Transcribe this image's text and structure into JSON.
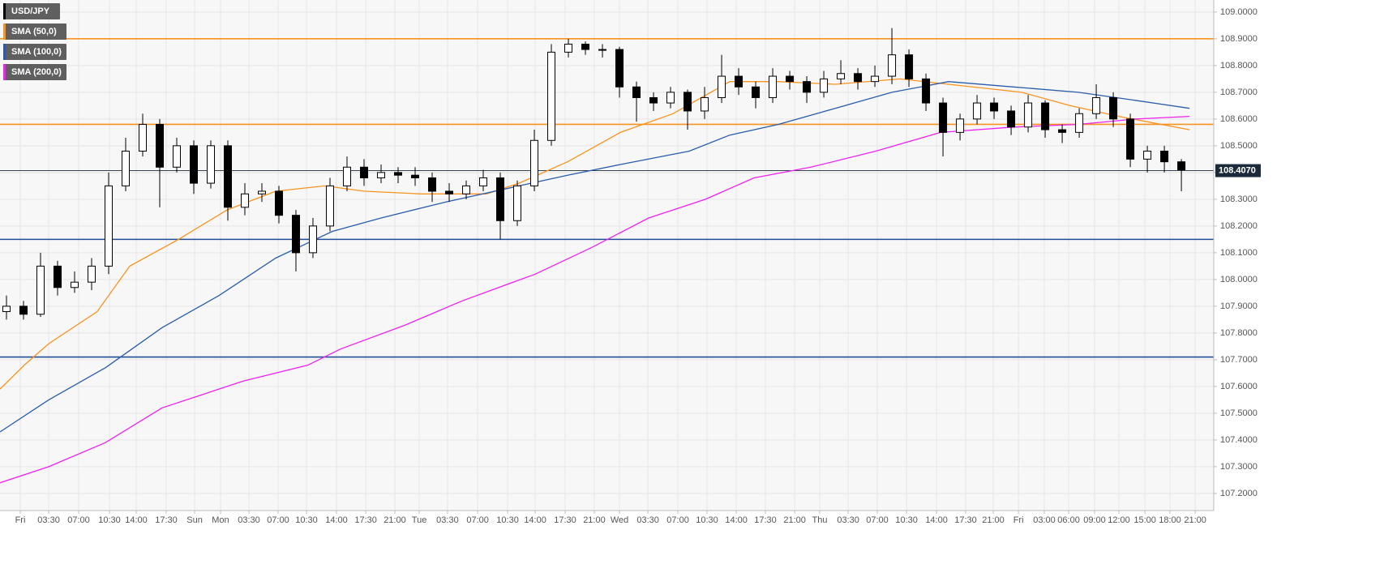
{
  "chart_data": {
    "type": "candlestick",
    "xlim": [
      -0.38,
      70.9
    ],
    "ylim": [
      107.136,
      109.045
    ],
    "grid": true,
    "legend": "top-left",
    "x": [
      0,
      1,
      2,
      3,
      4,
      5,
      6,
      7,
      8,
      9,
      10,
      11,
      12,
      13,
      14,
      15,
      16,
      17,
      18,
      19,
      20,
      21,
      22,
      23,
      24,
      25,
      26,
      27,
      28,
      29,
      30,
      31,
      32,
      33,
      34,
      35,
      36,
      37,
      38,
      39,
      40,
      41,
      42,
      43,
      44,
      45,
      46,
      47,
      48,
      49,
      50,
      51,
      52,
      53,
      54,
      55,
      56,
      57,
      58,
      59,
      60,
      61,
      62,
      63,
      64,
      65,
      66,
      67,
      68,
      69
    ],
    "candles": {
      "name": "USD/JPY",
      "color": "#000000",
      "up_color": "#ffffff",
      "open": [
        107.88,
        107.9,
        107.87,
        108.05,
        107.97,
        107.99,
        108.05,
        108.35,
        108.48,
        108.58,
        108.42,
        108.5,
        108.36,
        108.5,
        108.27,
        108.32,
        108.33,
        108.24,
        108.1,
        108.2,
        108.35,
        108.42,
        108.38,
        108.4,
        108.39,
        108.38,
        108.33,
        108.32,
        108.35,
        108.38,
        108.22,
        108.35,
        108.52,
        108.85,
        108.88,
        108.86,
        108.86,
        108.72,
        108.68,
        108.66,
        108.7,
        108.63,
        108.68,
        108.76,
        108.72,
        108.68,
        108.76,
        108.74,
        108.7,
        108.75,
        108.77,
        108.74,
        108.76,
        108.84,
        108.75,
        108.66,
        108.55,
        108.6,
        108.66,
        108.63,
        108.57,
        108.66,
        108.56,
        108.55,
        108.62,
        108.68,
        108.6,
        108.45,
        108.48,
        108.44
      ],
      "high": [
        107.94,
        107.92,
        108.1,
        108.07,
        108.03,
        108.08,
        108.4,
        108.53,
        108.62,
        108.6,
        108.53,
        108.52,
        108.52,
        108.52,
        108.36,
        108.36,
        108.35,
        108.26,
        108.23,
        108.38,
        108.46,
        108.45,
        108.43,
        108.42,
        108.42,
        108.4,
        108.36,
        108.37,
        108.41,
        108.4,
        108.37,
        108.56,
        108.88,
        108.9,
        108.89,
        108.88,
        108.87,
        108.74,
        108.7,
        108.72,
        108.71,
        108.72,
        108.84,
        108.79,
        108.74,
        108.79,
        108.78,
        108.76,
        108.78,
        108.82,
        108.79,
        108.8,
        108.94,
        108.86,
        108.77,
        108.68,
        108.62,
        108.69,
        108.68,
        108.65,
        108.69,
        108.67,
        108.58,
        108.64,
        108.73,
        108.7,
        108.62,
        108.5,
        108.5,
        108.45
      ],
      "low": [
        107.85,
        107.85,
        107.86,
        107.94,
        107.95,
        107.96,
        108.02,
        108.33,
        108.46,
        108.27,
        108.4,
        108.32,
        108.34,
        108.22,
        108.24,
        108.29,
        108.21,
        108.03,
        108.08,
        108.18,
        108.33,
        108.35,
        108.36,
        108.36,
        108.35,
        108.29,
        108.29,
        108.3,
        108.33,
        108.15,
        108.2,
        108.33,
        108.5,
        108.83,
        108.84,
        108.83,
        108.68,
        108.59,
        108.63,
        108.64,
        108.56,
        108.6,
        108.66,
        108.69,
        108.64,
        108.66,
        108.71,
        108.66,
        108.68,
        108.73,
        108.71,
        108.72,
        108.73,
        108.72,
        108.63,
        108.46,
        108.52,
        108.58,
        108.6,
        108.54,
        108.55,
        108.53,
        108.51,
        108.53,
        108.6,
        108.57,
        108.42,
        108.4,
        108.4,
        108.33
      ],
      "close": [
        107.9,
        107.87,
        108.05,
        107.97,
        107.99,
        108.05,
        108.35,
        108.48,
        108.58,
        108.42,
        108.5,
        108.36,
        108.5,
        108.27,
        108.32,
        108.33,
        108.24,
        108.1,
        108.2,
        108.35,
        108.42,
        108.38,
        108.4,
        108.39,
        108.38,
        108.33,
        108.32,
        108.35,
        108.38,
        108.22,
        108.35,
        108.52,
        108.85,
        108.88,
        108.86,
        108.86,
        108.72,
        108.68,
        108.66,
        108.7,
        108.63,
        108.68,
        108.76,
        108.72,
        108.68,
        108.76,
        108.74,
        108.7,
        108.75,
        108.77,
        108.74,
        108.76,
        108.84,
        108.75,
        108.66,
        108.55,
        108.6,
        108.66,
        108.63,
        108.57,
        108.66,
        108.56,
        108.55,
        108.62,
        108.68,
        108.6,
        108.45,
        108.48,
        108.44,
        108.41
      ]
    },
    "series": [
      {
        "name": "SMA (50,0)",
        "color": "#f7931e",
        "x": [
          -0.38,
          1.05,
          2.48,
          5.33,
          7.24,
          10.1,
          12.95,
          15.81,
          18.67,
          21.05,
          24.38,
          28.19,
          30.1,
          32.95,
          36.05,
          39.14,
          42.48,
          45.33,
          48.67,
          52.48,
          55.33,
          59.62,
          62.48,
          65.33,
          69.48
        ],
        "values": [
          107.59,
          107.68,
          107.76,
          107.88,
          108.05,
          108.15,
          108.26,
          108.33,
          108.35,
          108.33,
          108.32,
          108.32,
          108.36,
          108.44,
          108.55,
          108.62,
          108.74,
          108.74,
          108.73,
          108.75,
          108.73,
          108.7,
          108.65,
          108.61,
          108.56
        ]
      },
      {
        "name": "SMA (100,0)",
        "color": "#2a5caa",
        "x": [
          -0.38,
          2.48,
          5.81,
          9.14,
          12.48,
          15.81,
          19.14,
          22,
          25.81,
          30.1,
          32.95,
          36.05,
          40.1,
          42.48,
          45.33,
          48.67,
          52,
          55.33,
          59.14,
          62.95,
          66.29,
          69.48
        ],
        "values": [
          107.43,
          107.55,
          107.67,
          107.82,
          107.94,
          108.08,
          108.18,
          108.23,
          108.29,
          108.35,
          108.39,
          108.43,
          108.48,
          108.54,
          108.58,
          108.64,
          108.7,
          108.74,
          108.72,
          108.7,
          108.67,
          108.64
        ]
      },
      {
        "name": "SMA (200,0)",
        "color": "#ee22ee",
        "x": [
          -0.38,
          2.48,
          5.81,
          9.14,
          11.05,
          13.9,
          17.71,
          19.62,
          23.43,
          26.76,
          31.05,
          34.38,
          37.71,
          41.05,
          43.9,
          47.24,
          51.05,
          54.86,
          59.14,
          62.95,
          66.29,
          69.48
        ],
        "values": [
          107.24,
          107.3,
          107.39,
          107.52,
          107.56,
          107.62,
          107.68,
          107.74,
          107.83,
          107.92,
          108.02,
          108.12,
          108.23,
          108.3,
          108.38,
          108.42,
          108.48,
          108.55,
          108.57,
          108.58,
          108.6,
          108.61
        ]
      }
    ],
    "hlines": [
      {
        "value": 108.9,
        "color": "#f7931e"
      },
      {
        "value": 108.58,
        "color": "#f7931e"
      },
      {
        "value": 108.15,
        "color": "#1f4e96"
      },
      {
        "value": 107.71,
        "color": "#1f4e96"
      }
    ],
    "last_price": {
      "value": 108.407,
      "label": "108.4070"
    },
    "yticks": [
      {
        "value": 107.2,
        "label": "107.2000"
      },
      {
        "value": 107.3,
        "label": "107.3000"
      },
      {
        "value": 107.4,
        "label": "107.4000"
      },
      {
        "value": 107.5,
        "label": "107.5000"
      },
      {
        "value": 107.6,
        "label": "107.6000"
      },
      {
        "value": 107.7,
        "label": "107.7000"
      },
      {
        "value": 107.8,
        "label": "107.8000"
      },
      {
        "value": 107.9,
        "label": "107.9000"
      },
      {
        "value": 108.0,
        "label": "108.0000"
      },
      {
        "value": 108.1,
        "label": "108.1000"
      },
      {
        "value": 108.2,
        "label": "108.2000"
      },
      {
        "value": 108.3,
        "label": "108.3000"
      },
      {
        "value": 108.4,
        "label": "108.4000"
      },
      {
        "value": 108.5,
        "label": "108.5000"
      },
      {
        "value": 108.6,
        "label": "108.6000"
      },
      {
        "value": 108.7,
        "label": "108.7000"
      },
      {
        "value": 108.8,
        "label": "108.8000"
      },
      {
        "value": 108.9,
        "label": "108.9000"
      },
      {
        "value": 109.0,
        "label": "109.0000"
      }
    ],
    "xticks": [
      {
        "value": 0.81,
        "label": "Fri"
      },
      {
        "value": 2.48,
        "label": "03:30"
      },
      {
        "value": 4.24,
        "label": "07:00"
      },
      {
        "value": 6.05,
        "label": "10:30"
      },
      {
        "value": 7.62,
        "label": "14:00"
      },
      {
        "value": 9.38,
        "label": "17:30"
      },
      {
        "value": 11.05,
        "label": "Sun"
      },
      {
        "value": 12.57,
        "label": "Mon"
      },
      {
        "value": 14.24,
        "label": "03:30"
      },
      {
        "value": 15.95,
        "label": "07:00"
      },
      {
        "value": 17.62,
        "label": "10:30"
      },
      {
        "value": 19.38,
        "label": "14:00"
      },
      {
        "value": 21.1,
        "label": "17:30"
      },
      {
        "value": 22.81,
        "label": "21:00"
      },
      {
        "value": 24.24,
        "label": "Tue"
      },
      {
        "value": 25.9,
        "label": "03:30"
      },
      {
        "value": 27.67,
        "label": "07:00"
      },
      {
        "value": 29.43,
        "label": "10:30"
      },
      {
        "value": 31.05,
        "label": "14:00"
      },
      {
        "value": 32.81,
        "label": "17:30"
      },
      {
        "value": 34.52,
        "label": "21:00"
      },
      {
        "value": 36,
        "label": "Wed"
      },
      {
        "value": 37.67,
        "label": "03:30"
      },
      {
        "value": 39.43,
        "label": "07:00"
      },
      {
        "value": 41.14,
        "label": "10:30"
      },
      {
        "value": 42.86,
        "label": "14:00"
      },
      {
        "value": 44.57,
        "label": "17:30"
      },
      {
        "value": 46.29,
        "label": "21:00"
      },
      {
        "value": 47.76,
        "label": "Thu"
      },
      {
        "value": 49.43,
        "label": "03:30"
      },
      {
        "value": 51.14,
        "label": "07:00"
      },
      {
        "value": 52.86,
        "label": "10:30"
      },
      {
        "value": 54.62,
        "label": "14:00"
      },
      {
        "value": 56.33,
        "label": "17:30"
      },
      {
        "value": 57.95,
        "label": "21:00"
      },
      {
        "value": 59.43,
        "label": "Fri"
      },
      {
        "value": 60.95,
        "label": "03:00"
      },
      {
        "value": 62.38,
        "label": "06:00"
      },
      {
        "value": 63.9,
        "label": "09:00"
      },
      {
        "value": 65.33,
        "label": "12:00"
      },
      {
        "value": 66.86,
        "label": "15:00"
      },
      {
        "value": 68.33,
        "label": "18:00"
      },
      {
        "value": 69.81,
        "label": "21:00"
      }
    ]
  }
}
